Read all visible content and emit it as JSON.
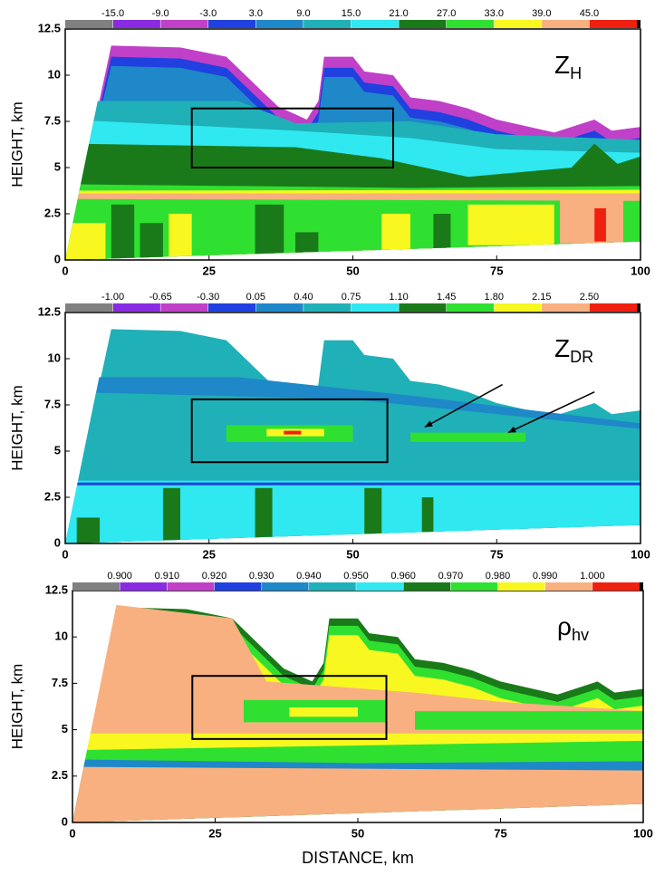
{
  "panels": [
    {
      "label": {
        "base": "Z",
        "sub": "H"
      },
      "colorbar": {
        "lim": [
          -21,
          51
        ],
        "ticks": [
          {
            "value": -15,
            "label": "-15.0"
          },
          {
            "value": -9,
            "label": "-9.0"
          },
          {
            "value": -3,
            "label": "-3.0"
          },
          {
            "value": 3,
            "label": "3.0"
          },
          {
            "value": 9,
            "label": "9.0"
          },
          {
            "value": 15,
            "label": "15.0"
          },
          {
            "value": 21,
            "label": "21.0"
          },
          {
            "value": 27,
            "label": "27.0"
          },
          {
            "value": 33,
            "label": "33.0"
          },
          {
            "value": 39,
            "label": "39.0"
          },
          {
            "value": 45,
            "label": "45.0"
          }
        ]
      },
      "box": {
        "x": [
          22,
          57
        ],
        "y": [
          5,
          8.2
        ]
      }
    },
    {
      "label": {
        "base": "Z",
        "sub": "DR"
      },
      "colorbar": {
        "lim": [
          -1.35,
          2.85
        ],
        "ticks": [
          {
            "value": -1,
            "label": "-1.00"
          },
          {
            "value": -0.65,
            "label": "-0.65"
          },
          {
            "value": -0.3,
            "label": "-0.30"
          },
          {
            "value": 0.05,
            "label": "0.05"
          },
          {
            "value": 0.4,
            "label": "0.40"
          },
          {
            "value": 0.75,
            "label": "0.75"
          },
          {
            "value": 1.1,
            "label": "1.10"
          },
          {
            "value": 1.45,
            "label": "1.45"
          },
          {
            "value": 1.8,
            "label": "1.80"
          },
          {
            "value": 2.15,
            "label": "2.15"
          },
          {
            "value": 2.5,
            "label": "2.50"
          }
        ]
      },
      "box": {
        "x": [
          22,
          56
        ],
        "y": [
          4.4,
          7.8
        ]
      },
      "arrows": [
        {
          "x": [
            76,
            62.5
          ],
          "y": [
            8.6,
            6.3
          ]
        },
        {
          "x": [
            92,
            77
          ],
          "y": [
            8.2,
            6.0
          ]
        }
      ]
    },
    {
      "label": {
        "base": "ρ",
        "sub": "hv"
      },
      "colorbar": {
        "lim": [
          0.89,
          1.01
        ],
        "ticks": [
          {
            "value": 0.9,
            "label": "0.900"
          },
          {
            "value": 0.91,
            "label": "0.910"
          },
          {
            "value": 0.92,
            "label": "0.920"
          },
          {
            "value": 0.93,
            "label": "0.930"
          },
          {
            "value": 0.94,
            "label": "0.940"
          },
          {
            "value": 0.95,
            "label": "0.950"
          },
          {
            "value": 0.96,
            "label": "0.960"
          },
          {
            "value": 0.97,
            "label": "0.970"
          },
          {
            "value": 0.98,
            "label": "0.980"
          },
          {
            "value": 0.99,
            "label": "0.990"
          },
          {
            "value": 1,
            "label": "1.000"
          }
        ]
      },
      "box": {
        "x": [
          21,
          55
        ],
        "y": [
          4.5,
          7.9
        ]
      }
    }
  ],
  "colors": [
    "#808080",
    "#8a2be2",
    "#c040c8",
    "#2040e0",
    "#1e88c8",
    "#20b0b8",
    "#30e8f0",
    "#1a7a1a",
    "#30e030",
    "#f8f820",
    "#f8b080",
    "#f02010"
  ],
  "xlim": [
    0,
    100
  ],
  "xticks": [
    0,
    25,
    50,
    75,
    100
  ],
  "ylim": [
    0,
    12.5
  ],
  "yticks": [
    0,
    2.5,
    5,
    7.5,
    10,
    12.5
  ],
  "ylabel": "HEIGHT, km",
  "xlabel": "DISTANCE, km"
}
